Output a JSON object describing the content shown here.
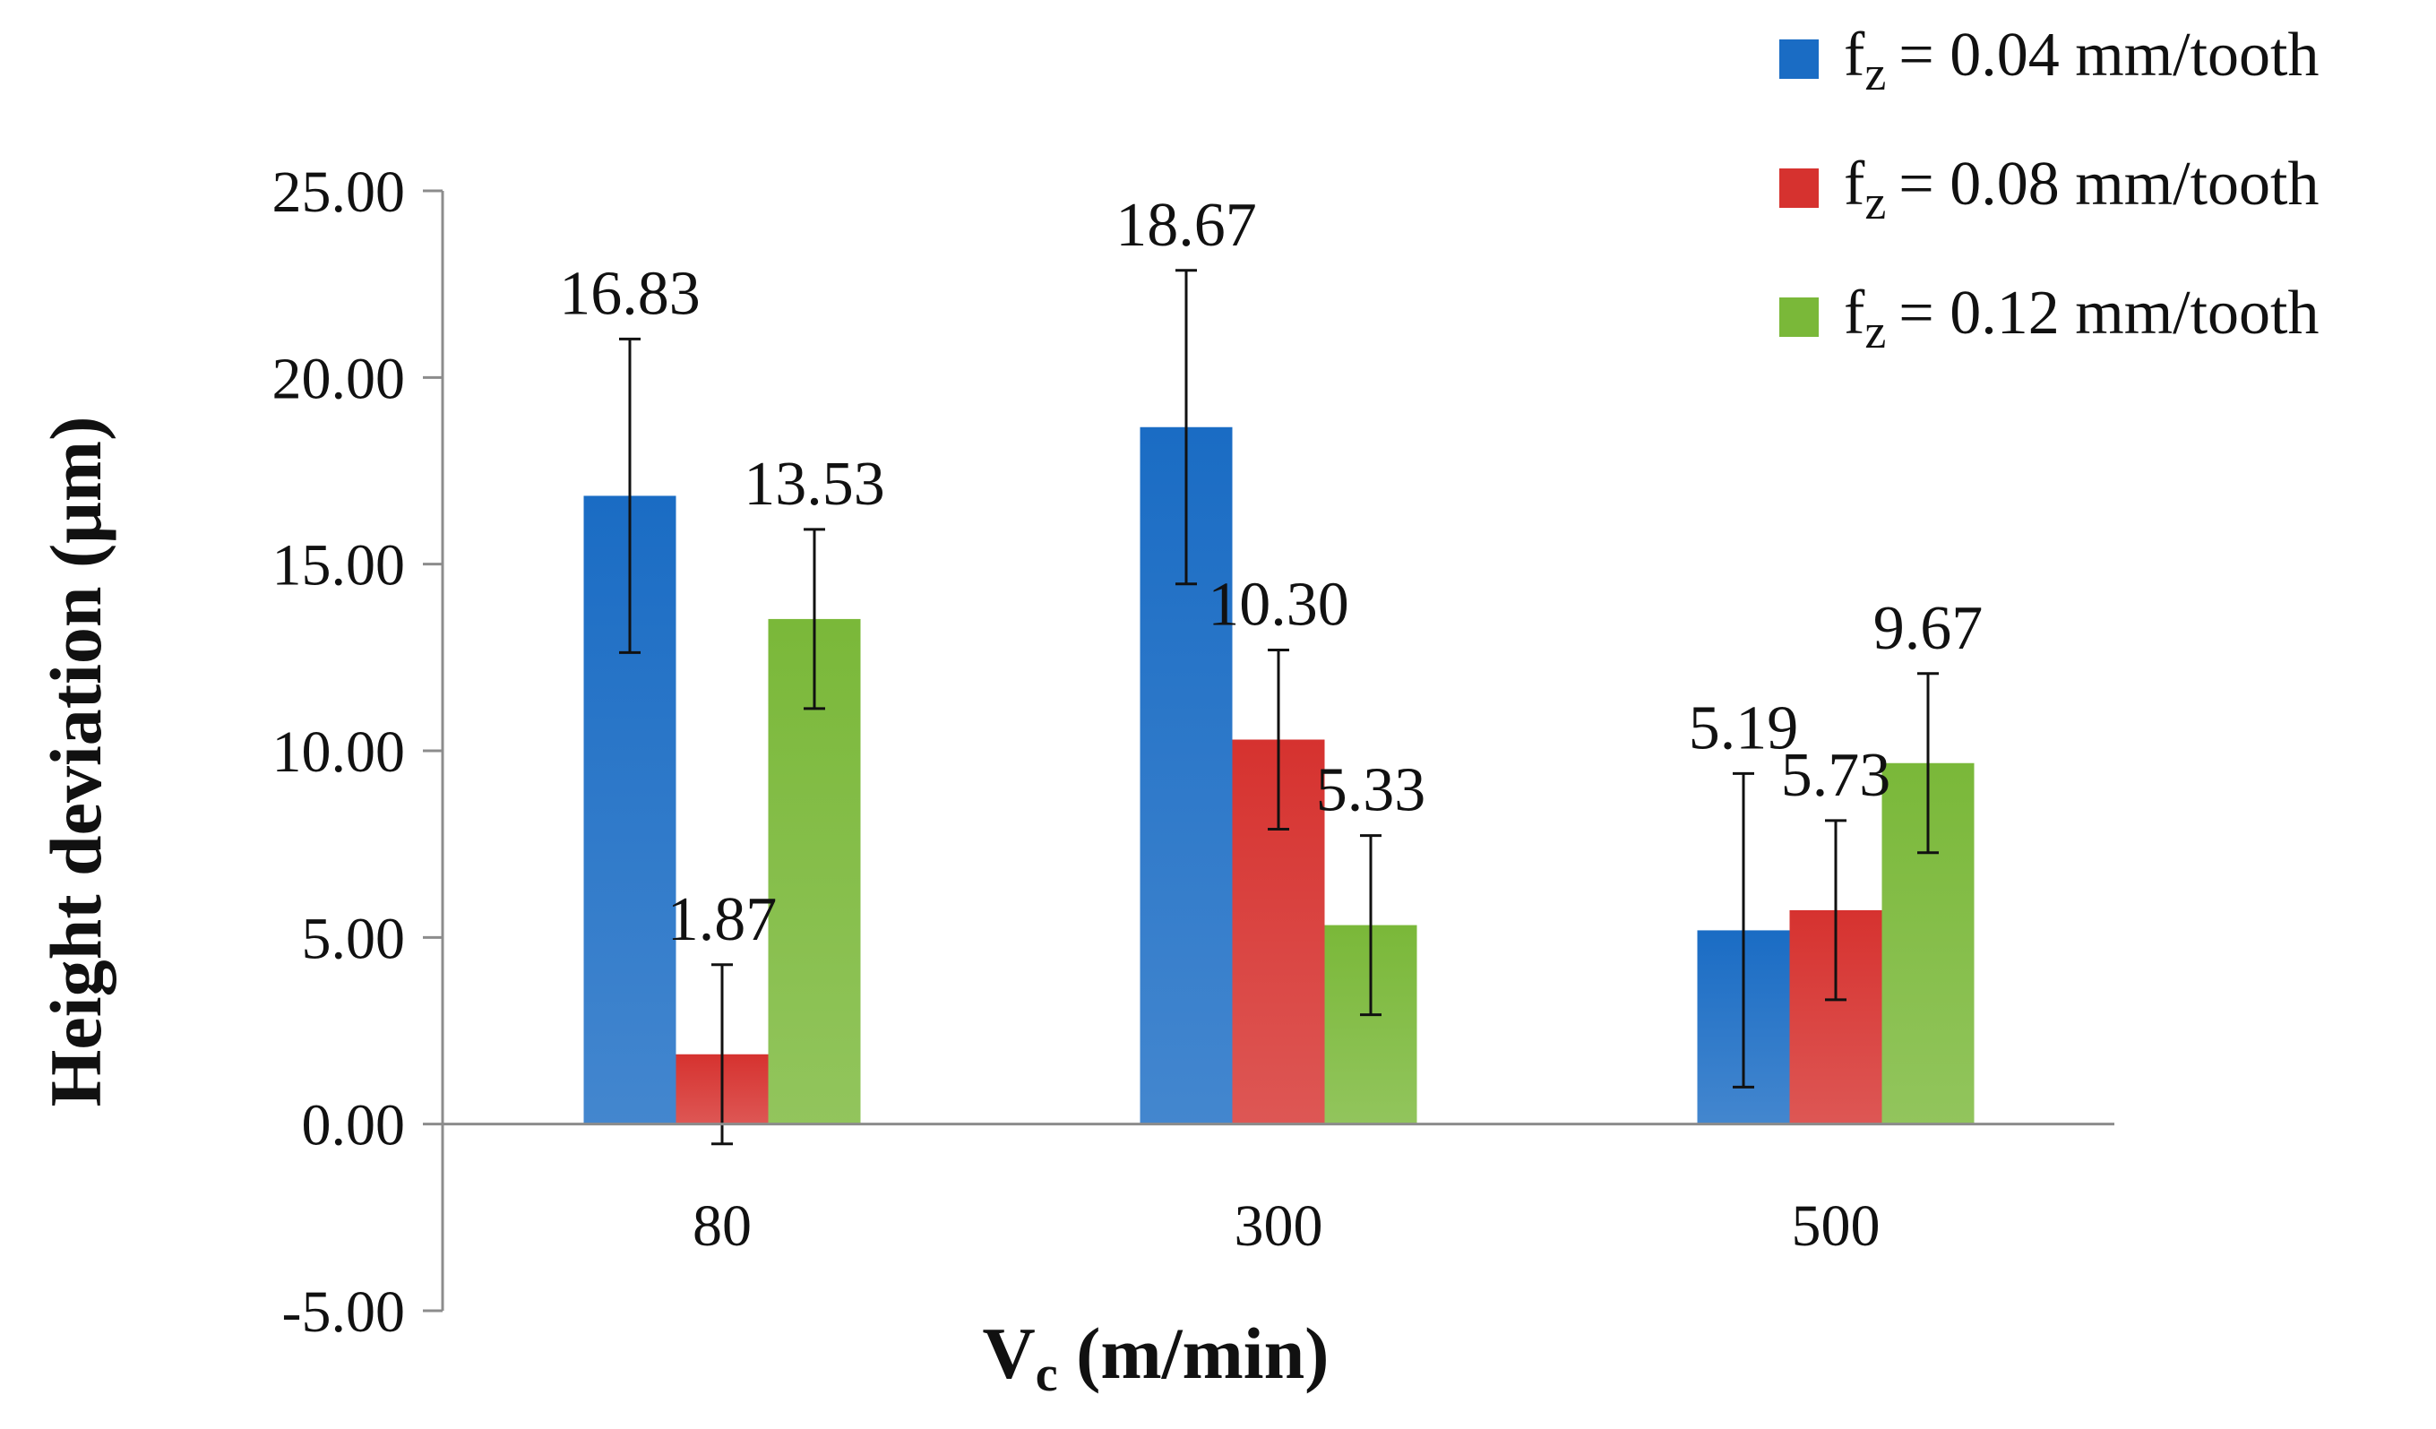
{
  "chart_data": {
    "type": "bar",
    "categories": [
      "80",
      "300",
      "500"
    ],
    "series": [
      {
        "name": "fz = 0.04 mm/tooth",
        "legend_prefix": "f",
        "legend_sub": "z",
        "legend_value": "=  0.04 mm/tooth",
        "color": "#1a6cc4",
        "values": [
          16.83,
          18.67,
          5.19
        ],
        "labels": [
          "16.83",
          "18.67",
          "5.19"
        ],
        "errors": [
          4.2,
          4.2,
          4.2
        ]
      },
      {
        "name": "fz = 0.08 mm/tooth",
        "legend_prefix": "f",
        "legend_sub": "z",
        "legend_value": "=  0.08 mm/tooth",
        "color": "#d6322f",
        "values": [
          1.87,
          10.3,
          5.73
        ],
        "labels": [
          "1.87",
          "10.30",
          "5.73"
        ],
        "errors": [
          2.4,
          2.4,
          2.4
        ]
      },
      {
        "name": "fz = 0.12 mm/tooth",
        "legend_prefix": "f",
        "legend_sub": "z",
        "legend_value": "= 0.12 mm/tooth",
        "color": "#7ab839",
        "values": [
          13.53,
          5.33,
          9.67
        ],
        "labels": [
          "13.53",
          "5.33",
          "9.67"
        ],
        "errors": [
          2.4,
          2.4,
          2.4
        ]
      }
    ],
    "ylim": [
      -5,
      25
    ],
    "yticks": [
      25,
      20,
      15,
      10,
      5,
      0,
      -5
    ],
    "ytick_labels": [
      "25.00",
      "20.00",
      "15.00",
      "10.00",
      "5.00",
      "0.00",
      "-5.00"
    ],
    "ylabel": "Height deviation (μm)",
    "xlabel_main": "V",
    "xlabel_sub": "c",
    "xlabel_unit": " (m/min)",
    "legend_position": "top-right",
    "grid": false
  }
}
